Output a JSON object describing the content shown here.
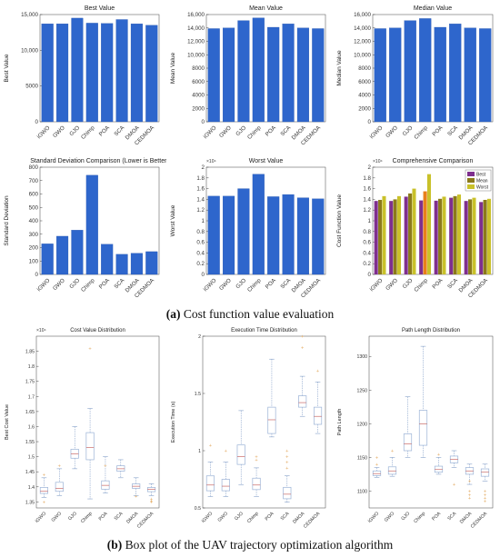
{
  "captions": {
    "a": {
      "tag": "(a)",
      "text": " Cost function value evaluation"
    },
    "b": {
      "tag": "(b)",
      "text": " Box plot of the UAV trajectory optimization algorithm"
    }
  },
  "colors": {
    "bar": "#2E66CC",
    "best": "#7E2F8E",
    "mean": "#8B7A1A",
    "worst": "#C9C12A",
    "chimp_highlight": "#E8801A",
    "box": "#9AB2D6",
    "outlier": "#E0A050"
  },
  "chart_data": [
    {
      "id": "best-value",
      "type": "bar",
      "title": "Best Value",
      "xlabel": "",
      "ylabel": "Best Value",
      "categories": [
        "iGWO",
        "GWO",
        "GJO",
        "Chimp",
        "POA",
        "SCA",
        "DMOA",
        "CEDMOA"
      ],
      "values": [
        13700,
        13700,
        14500,
        13800,
        13750,
        14300,
        13700,
        13500
      ],
      "ylim": [
        0,
        15000
      ],
      "yticks": [
        0,
        5000,
        10000,
        15000
      ],
      "yticklabels": [
        "0",
        "5000",
        "10,000",
        "15,000"
      ],
      "exponent": ""
    },
    {
      "id": "mean-value",
      "type": "bar",
      "title": "Mean Value",
      "xlabel": "",
      "ylabel": "Mean Value",
      "categories": [
        "iGWO",
        "GWO",
        "GJO",
        "Chimp",
        "POA",
        "SCA",
        "DMOA",
        "CEDMOA"
      ],
      "values": [
        13900,
        14000,
        15100,
        15500,
        14100,
        14600,
        14000,
        13900
      ],
      "ylim": [
        0,
        16000
      ],
      "yticks": [
        0,
        2000,
        4000,
        6000,
        8000,
        10000,
        12000,
        14000,
        16000
      ],
      "yticklabels": [
        "0",
        "2000",
        "4000",
        "6000",
        "8000",
        "10,000",
        "12,000",
        "14,000",
        "16,000"
      ],
      "exponent": ""
    },
    {
      "id": "median-value",
      "type": "bar",
      "title": "Median Value",
      "xlabel": "",
      "ylabel": "Median Value",
      "categories": [
        "iGWO",
        "GWO",
        "GJO",
        "Chimp",
        "POA",
        "SCA",
        "DMOA",
        "CEDMOA"
      ],
      "values": [
        13900,
        14000,
        15100,
        15400,
        14100,
        14600,
        14000,
        13900
      ],
      "ylim": [
        0,
        16000
      ],
      "yticks": [
        0,
        2000,
        4000,
        6000,
        8000,
        10000,
        12000,
        14000,
        16000
      ],
      "yticklabels": [
        "0",
        "2000",
        "4000",
        "6000",
        "8000",
        "10,000",
        "12,000",
        "14,000",
        "16,000"
      ],
      "exponent": ""
    },
    {
      "id": "std-deviation",
      "type": "bar",
      "title": "Standard Deviation Comparison (Lower is Better)",
      "xlabel": "",
      "ylabel": "Standard Deviation",
      "categories": [
        "iGWO",
        "GWO",
        "GJO",
        "Chimp",
        "POA",
        "SCA",
        "DMOA",
        "CEDMOA"
      ],
      "values": [
        228,
        285,
        330,
        740,
        225,
        150,
        158,
        170
      ],
      "ylim": [
        0,
        800
      ],
      "yticks": [
        0,
        100,
        200,
        300,
        400,
        500,
        600,
        700,
        800
      ],
      "yticklabels": [
        "0",
        "100",
        "200",
        "300",
        "400",
        "500",
        "600",
        "700",
        "800"
      ],
      "exponent": ""
    },
    {
      "id": "worst-value",
      "type": "bar",
      "title": "Worst Value",
      "xlabel": "",
      "ylabel": "Worst Value",
      "categories": [
        "iGWO",
        "GWO",
        "GJO",
        "Chimp",
        "POA",
        "SCA",
        "DMOA",
        "CEDMOA"
      ],
      "values": [
        1.46,
        1.46,
        1.6,
        1.87,
        1.45,
        1.49,
        1.43,
        1.41
      ],
      "ylim": [
        0,
        2
      ],
      "yticks": [
        0,
        0.2,
        0.4,
        0.6,
        0.8,
        1,
        1.2,
        1.4,
        1.6,
        1.8,
        2
      ],
      "yticklabels": [
        "0",
        "0.2",
        "0.4",
        "0.6",
        "0.8",
        "1",
        "1.2",
        "1.4",
        "1.6",
        "1.8",
        "2"
      ],
      "exponent": "×10⁴"
    },
    {
      "id": "comprehensive",
      "type": "grouped-bar",
      "title": "Comprehensive Comparison",
      "xlabel": "",
      "ylabel": "Cost Function Value",
      "categories": [
        "iGWO",
        "GWO",
        "GJO",
        "Chimp",
        "POA",
        "SCA",
        "DMOA",
        "CEDMOA"
      ],
      "series": [
        {
          "name": "Best",
          "values": [
            1.37,
            1.37,
            1.45,
            1.38,
            1.375,
            1.43,
            1.37,
            1.35
          ]
        },
        {
          "name": "Mean",
          "values": [
            1.39,
            1.4,
            1.51,
            1.55,
            1.41,
            1.46,
            1.4,
            1.39
          ]
        },
        {
          "name": "Worst",
          "values": [
            1.46,
            1.46,
            1.6,
            1.87,
            1.45,
            1.49,
            1.43,
            1.41
          ]
        }
      ],
      "ylim": [
        0,
        2
      ],
      "yticks": [
        0,
        0.2,
        0.4,
        0.6,
        0.8,
        1,
        1.2,
        1.4,
        1.6,
        1.8,
        2
      ],
      "yticklabels": [
        "0",
        "0.2",
        "0.4",
        "0.6",
        "0.8",
        "1",
        "1.2",
        "1.4",
        "1.6",
        "1.8",
        "2"
      ],
      "exponent": "×10⁴",
      "legend": "top-right"
    },
    {
      "id": "cost-distribution",
      "type": "box",
      "title": "Cost Value Distribution",
      "xlabel": "",
      "ylabel": "Best Cost Value",
      "categories": [
        "iGWO",
        "GWO",
        "GJO",
        "Chimp",
        "POA",
        "SCA",
        "DMOA",
        "CEDMOA"
      ],
      "boxes": [
        {
          "min": 1.365,
          "q1": 1.378,
          "median": 1.385,
          "q3": 1.398,
          "max": 1.43,
          "outliers": [
            1.44,
            1.35
          ]
        },
        {
          "min": 1.37,
          "q1": 1.385,
          "median": 1.395,
          "q3": 1.415,
          "max": 1.46,
          "outliers": [
            1.47
          ]
        },
        {
          "min": 1.46,
          "q1": 1.495,
          "median": 1.51,
          "q3": 1.525,
          "max": 1.6,
          "outliers": []
        },
        {
          "min": 1.36,
          "q1": 1.49,
          "median": 1.53,
          "q3": 1.58,
          "max": 1.66,
          "outliers": [
            1.86
          ]
        },
        {
          "min": 1.38,
          "q1": 1.392,
          "median": 1.405,
          "q3": 1.42,
          "max": 1.5,
          "outliers": [
            1.47
          ]
        },
        {
          "min": 1.43,
          "q1": 1.452,
          "median": 1.46,
          "q3": 1.47,
          "max": 1.49,
          "outliers": []
        },
        {
          "min": 1.37,
          "q1": 1.395,
          "median": 1.402,
          "q3": 1.41,
          "max": 1.43,
          "outliers": [
            1.37
          ]
        },
        {
          "min": 1.37,
          "q1": 1.384,
          "median": 1.392,
          "q3": 1.398,
          "max": 1.41,
          "outliers": [
            1.36,
            1.355,
            1.35
          ]
        }
      ],
      "ylim": [
        1.33,
        1.9
      ],
      "yticks": [
        1.35,
        1.4,
        1.45,
        1.5,
        1.55,
        1.6,
        1.65,
        1.7,
        1.75,
        1.8,
        1.85
      ],
      "yticklabels": [
        "1.35",
        "1.4",
        "1.45",
        "1.5",
        "1.55",
        "1.6",
        "1.65",
        "1.7",
        "1.75",
        "1.8",
        "1.85"
      ],
      "exponent": "×10⁴"
    },
    {
      "id": "time-distribution",
      "type": "box",
      "title": "Execution Time Distribution",
      "xlabel": "",
      "ylabel": "Execution Time (s)",
      "categories": [
        "iGWO",
        "GWO",
        "GJO",
        "Chimp",
        "POA",
        "SCA",
        "DMOA",
        "CEDMOA"
      ],
      "boxes": [
        {
          "min": 0.6,
          "q1": 0.65,
          "median": 0.7,
          "q3": 0.78,
          "max": 0.9,
          "outliers": [
            1.05
          ]
        },
        {
          "min": 0.6,
          "q1": 0.65,
          "median": 0.69,
          "q3": 0.75,
          "max": 0.9,
          "outliers": [
            1.0
          ]
        },
        {
          "min": 0.7,
          "q1": 0.88,
          "median": 0.95,
          "q3": 1.05,
          "max": 1.35,
          "outliers": []
        },
        {
          "min": 0.6,
          "q1": 0.66,
          "median": 0.7,
          "q3": 0.76,
          "max": 0.85,
          "outliers": [
            0.92,
            0.95
          ]
        },
        {
          "min": 1.12,
          "q1": 1.15,
          "median": 1.27,
          "q3": 1.38,
          "max": 1.8,
          "outliers": []
        },
        {
          "min": 0.55,
          "q1": 0.58,
          "median": 0.62,
          "q3": 0.68,
          "max": 0.78,
          "outliers": [
            0.85,
            0.9,
            0.95,
            1.0
          ]
        },
        {
          "min": 1.3,
          "q1": 1.38,
          "median": 1.42,
          "q3": 1.48,
          "max": 1.65,
          "outliers": [
            1.9,
            2.0
          ]
        },
        {
          "min": 1.15,
          "q1": 1.23,
          "median": 1.3,
          "q3": 1.38,
          "max": 1.6,
          "outliers": [
            1.7
          ]
        }
      ],
      "ylim": [
        0.5,
        2.0
      ],
      "yticks": [
        0.5,
        1,
        1.5,
        2
      ],
      "yticklabels": [
        "0.5",
        "1",
        "1.5",
        "2"
      ],
      "exponent": ""
    },
    {
      "id": "path-distribution",
      "type": "box",
      "title": "Path Length Distribution",
      "xlabel": "",
      "ylabel": "Path Length",
      "categories": [
        "iGWO",
        "GWO",
        "GJO",
        "Chimp",
        "POA",
        "SCA",
        "DMOA",
        "CEDMOA"
      ],
      "boxes": [
        {
          "min": 1120,
          "q1": 1123,
          "median": 1126,
          "q3": 1130,
          "max": 1135,
          "outliers": [
            1140,
            1150
          ]
        },
        {
          "min": 1122,
          "q1": 1125,
          "median": 1130,
          "q3": 1136,
          "max": 1150,
          "outliers": [
            1160
          ]
        },
        {
          "min": 1150,
          "q1": 1160,
          "median": 1170,
          "q3": 1185,
          "max": 1240,
          "outliers": []
        },
        {
          "min": 1150,
          "q1": 1168,
          "median": 1200,
          "q3": 1220,
          "max": 1315,
          "outliers": []
        },
        {
          "min": 1125,
          "q1": 1128,
          "median": 1132,
          "q3": 1137,
          "max": 1150,
          "outliers": [
            1155
          ]
        },
        {
          "min": 1135,
          "q1": 1142,
          "median": 1147,
          "q3": 1152,
          "max": 1160,
          "outliers": [
            1110
          ]
        },
        {
          "min": 1110,
          "q1": 1125,
          "median": 1130,
          "q3": 1135,
          "max": 1140,
          "outliers": [
            1100,
            1095,
            1090,
            1115
          ]
        },
        {
          "min": 1115,
          "q1": 1122,
          "median": 1128,
          "q3": 1133,
          "max": 1140,
          "outliers": [
            1100,
            1095,
            1090,
            1085
          ]
        }
      ],
      "ylim": [
        1075,
        1330
      ],
      "yticks": [
        1100,
        1150,
        1200,
        1250,
        1300
      ],
      "yticklabels": [
        "1100",
        "1150",
        "1200",
        "1250",
        "1300"
      ],
      "exponent": ""
    }
  ]
}
